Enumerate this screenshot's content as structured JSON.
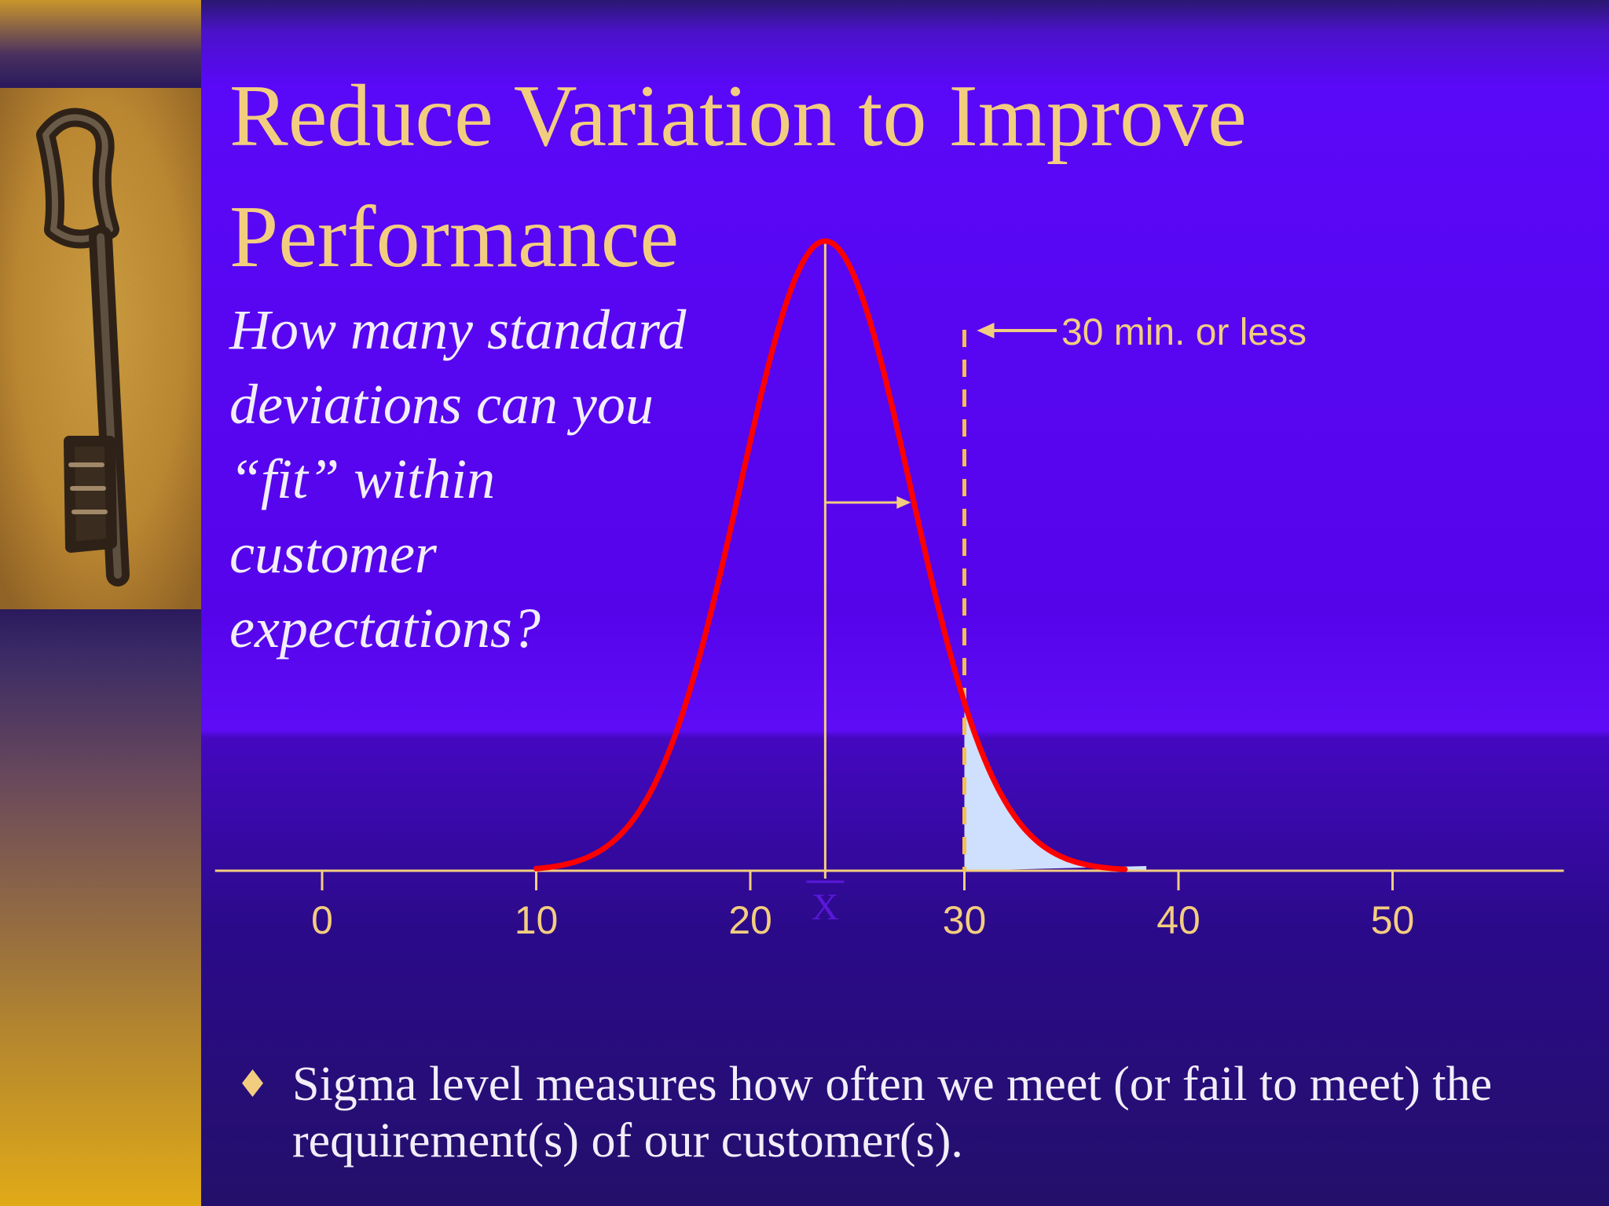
{
  "slide": {
    "title_line_1": "Reduce Variation to Improve",
    "title_line_2": "Performance",
    "question_lines": [
      "How many standard",
      "deviations can you",
      "“fit” within",
      "customer",
      "expectations?"
    ],
    "bullet_text": "Sigma level measures how often we meet (or fail to meet) the requirement(s) of our customer(s)."
  },
  "colors": {
    "title": "#f3cd7f",
    "axis": "#f3cd7f",
    "curve": "#ff0000",
    "tail_fill": "#cfe0ff",
    "background": "#5a08f8"
  },
  "icons": {
    "bullet": "diamond-bullet-icon",
    "left_image": "old-iron-key-photo"
  },
  "chart_data": {
    "type": "area",
    "distribution": "normal",
    "mean": 23.5,
    "std_dev": 4.0,
    "xlim": [
      -5,
      58
    ],
    "x_ticks": [
      0,
      10,
      20,
      30,
      40,
      50
    ],
    "curve_range": [
      10,
      37.5
    ],
    "spec_limit": 30,
    "spec_label": "30 min. or less",
    "shaded_region": {
      "from": 30,
      "to": 38.5
    },
    "mean_label": "X",
    "sigma_marker_to": 27.5,
    "grid": false,
    "legend": "none"
  }
}
